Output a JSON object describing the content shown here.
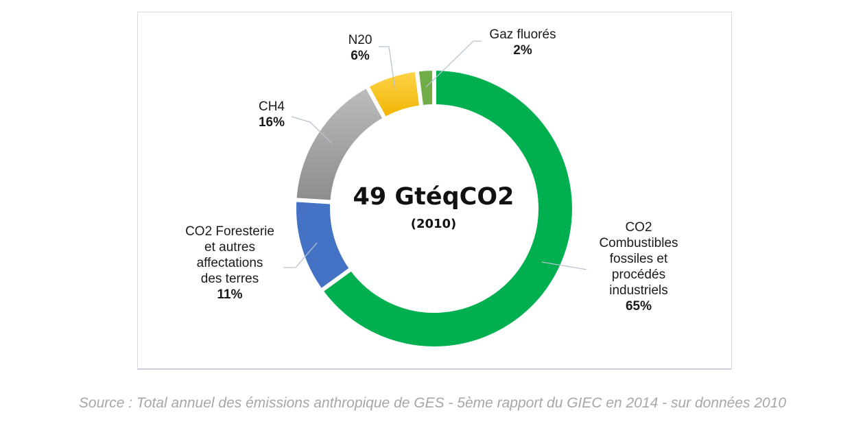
{
  "chart_data": {
    "type": "pie",
    "style": "donut",
    "center_title": "49 GtéqCO2",
    "center_subtitle": "(2010)",
    "slices": [
      {
        "name": "CO2\nCombustibles\nfossiles et\nprocédés\nindustriels",
        "value": 65,
        "label": "65%",
        "color": "#00b050"
      },
      {
        "name": "CO2 Foresterie\net autres\naffectations\ndes terres",
        "value": 11,
        "label": "11%",
        "color": "#4472c4"
      },
      {
        "name": "CH4",
        "value": 16,
        "label": "16%",
        "color": "#a6a6a6"
      },
      {
        "name": "N20",
        "value": 6,
        "label": "6%",
        "color": "#ffc000"
      },
      {
        "name": "Gaz fluorés",
        "value": 2,
        "label": "2%",
        "color": "#70ad47"
      }
    ]
  },
  "source": "Source : Total annuel des émissions anthropique de GES - 5ème rapport du GIEC en 2014 - sur données 2010"
}
